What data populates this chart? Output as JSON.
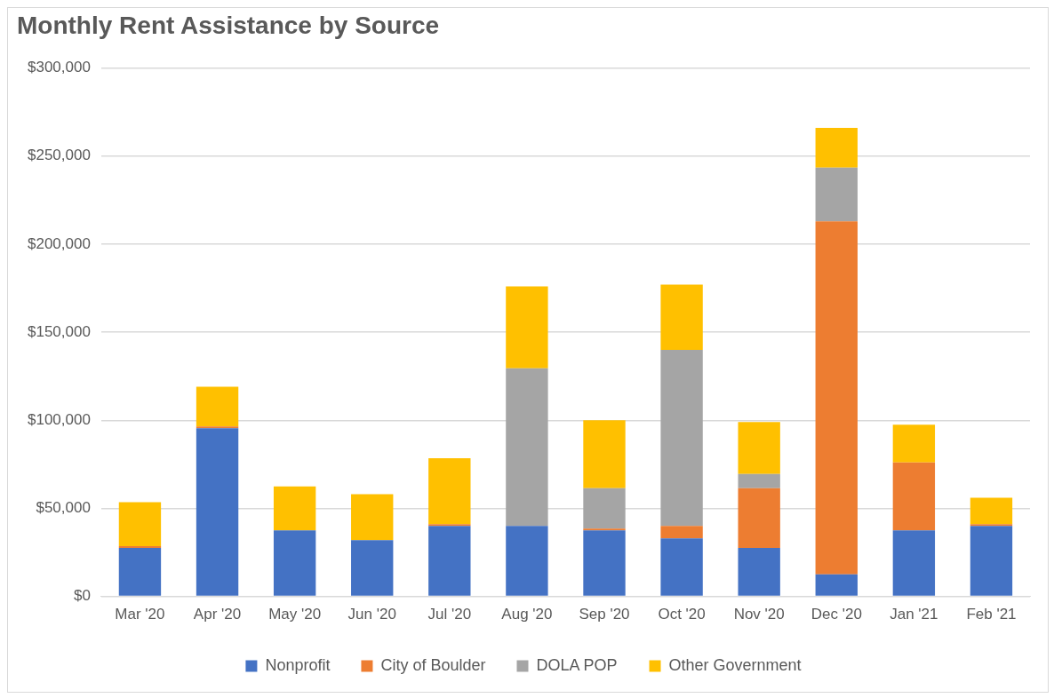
{
  "chart_data": {
    "type": "bar",
    "title": "Monthly Rent Assistance by Source",
    "stacked": true,
    "grid": "y",
    "legend": "bottom",
    "categories": [
      "Mar '20",
      "Apr '20",
      "May '20",
      "Jun '20",
      "Jul '20",
      "Aug '20",
      "Sep '20",
      "Oct '20",
      "Nov '20",
      "Dec '20",
      "Jan '21",
      "Feb '21"
    ],
    "series": [
      {
        "name": "Nonprofit",
        "color": "#4472c4",
        "values": [
          27500,
          95500,
          37500,
          32000,
          40000,
          40000,
          37500,
          33000,
          27500,
          12500,
          37500,
          40000
        ]
      },
      {
        "name": "City of Boulder",
        "color": "#ed7d31",
        "values": [
          1000,
          1000,
          0,
          0,
          1000,
          0,
          1000,
          7000,
          34000,
          200500,
          38500,
          1000
        ]
      },
      {
        "name": "DOLA POP",
        "color": "#a5a5a5",
        "values": [
          0,
          0,
          0,
          0,
          0,
          89500,
          23000,
          100000,
          8000,
          30500,
          0,
          0
        ]
      },
      {
        "name": "Other Government",
        "color": "#ffc000",
        "values": [
          25000,
          22500,
          25000,
          26000,
          37500,
          46500,
          38500,
          37000,
          29500,
          22500,
          21500,
          15000
        ]
      }
    ],
    "ylim": [
      0,
      300000
    ],
    "yticks": [
      {
        "value": 0,
        "label": "$0"
      },
      {
        "value": 50000,
        "label": "$50,000"
      },
      {
        "value": 100000,
        "label": "$100,000"
      },
      {
        "value": 150000,
        "label": "$150,000"
      },
      {
        "value": 200000,
        "label": "$200,000"
      },
      {
        "value": 250000,
        "label": "$250,000"
      },
      {
        "value": 300000,
        "label": "$300,000"
      }
    ]
  }
}
